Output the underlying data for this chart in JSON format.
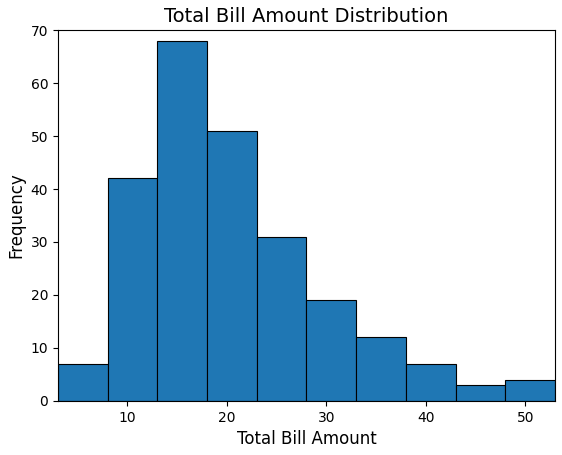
{
  "title": "Total Bill Amount Distribution",
  "xlabel": "Total Bill Amount",
  "ylabel": "Frequency",
  "bar_color": "#1f77b4",
  "edge_color": "black",
  "ylim": [
    0,
    70
  ],
  "yticks": [
    0,
    10,
    20,
    30,
    40,
    50,
    60,
    70
  ],
  "xticks": [
    10,
    20,
    30,
    40,
    50
  ],
  "bin_edges": [
    3.0,
    8.0,
    13.0,
    18.0,
    23.0,
    28.0,
    33.0,
    38.0,
    43.0,
    48.0,
    53.0
  ],
  "counts": [
    7,
    42,
    68,
    51,
    31,
    19,
    12,
    7,
    3,
    4
  ],
  "title_fontsize": 14,
  "label_fontsize": 12,
  "figsize": [
    5.62,
    4.55
  ],
  "dpi": 100
}
